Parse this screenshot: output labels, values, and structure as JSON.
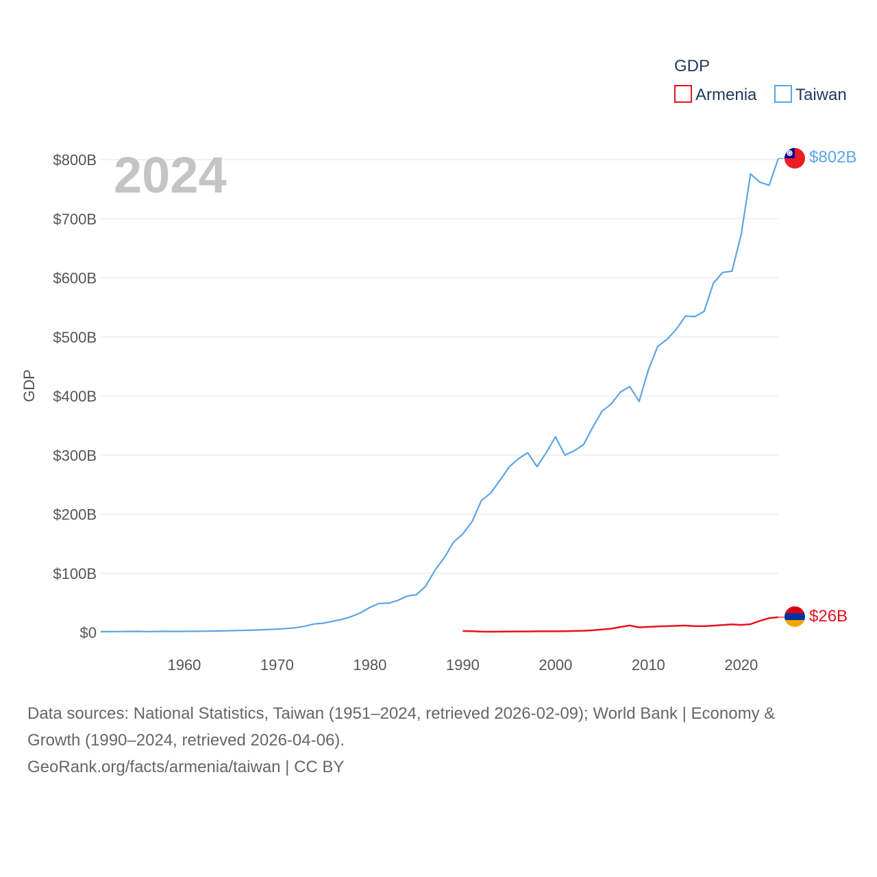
{
  "chart_data": {
    "type": "line",
    "title": "",
    "legend_title": "GDP",
    "legend_position": "top-right",
    "ylabel": "GDP",
    "xlabel": "",
    "year_label": "2024",
    "xlim": [
      1951,
      2024
    ],
    "ylim": [
      0,
      800
    ],
    "y_unit": "billions USD",
    "x_ticks": [
      1960,
      1970,
      1980,
      1990,
      2000,
      2010,
      2020
    ],
    "x_tick_labels": [
      "1960",
      "1970",
      "1980",
      "1990",
      "2000",
      "2010",
      "2020"
    ],
    "y_ticks": [
      0,
      100,
      200,
      300,
      400,
      500,
      600,
      700,
      800
    ],
    "y_tick_labels": [
      "$0",
      "$100B",
      "$200B",
      "$300B",
      "$400B",
      "$500B",
      "$600B",
      "$700B",
      "$800B"
    ],
    "grid": true,
    "series": [
      {
        "name": "Armenia",
        "color": "#e8101e",
        "end_label": "$26B",
        "flag": "armenia",
        "x": [
          1990,
          1991,
          1992,
          1993,
          1994,
          1995,
          1996,
          1997,
          1998,
          1999,
          2000,
          2001,
          2002,
          2003,
          2004,
          2005,
          2006,
          2007,
          2008,
          2009,
          2010,
          2011,
          2012,
          2013,
          2014,
          2015,
          2016,
          2017,
          2018,
          2019,
          2020,
          2021,
          2022,
          2023,
          2024
        ],
        "values": [
          2.3,
          2.1,
          1.3,
          1.2,
          1.3,
          1.5,
          1.6,
          1.6,
          1.9,
          1.8,
          1.9,
          2.1,
          2.4,
          2.8,
          3.6,
          4.9,
          6.4,
          9.2,
          11.7,
          8.6,
          9.3,
          10.1,
          10.6,
          11.1,
          11.6,
          10.6,
          10.5,
          11.5,
          12.5,
          13.6,
          12.6,
          13.9,
          19.5,
          24.1,
          25.8
        ]
      },
      {
        "name": "Taiwan",
        "color": "#5aa4e6",
        "end_label": "$802B",
        "flag": "taiwan",
        "x": [
          1951,
          1952,
          1953,
          1954,
          1955,
          1956,
          1957,
          1958,
          1959,
          1960,
          1961,
          1962,
          1963,
          1964,
          1965,
          1966,
          1967,
          1968,
          1969,
          1970,
          1971,
          1972,
          1973,
          1974,
          1975,
          1976,
          1977,
          1978,
          1979,
          1980,
          1981,
          1982,
          1983,
          1984,
          1985,
          1986,
          1987,
          1988,
          1989,
          1990,
          1991,
          1992,
          1993,
          1994,
          1995,
          1996,
          1997,
          1998,
          1999,
          2000,
          2001,
          2002,
          2003,
          2004,
          2005,
          2006,
          2007,
          2008,
          2009,
          2010,
          2011,
          2012,
          2013,
          2014,
          2015,
          2016,
          2017,
          2018,
          2019,
          2020,
          2021,
          2022,
          2023,
          2024
        ],
        "values": [
          1.2,
          1.5,
          1.4,
          1.6,
          1.7,
          1.4,
          1.6,
          1.8,
          1.6,
          1.7,
          1.8,
          2.0,
          2.3,
          2.6,
          2.9,
          3.2,
          3.6,
          4.2,
          4.9,
          5.7,
          6.6,
          7.9,
          10.5,
          14.3,
          15.6,
          18.9,
          22.0,
          26.8,
          33.2,
          42.3,
          49.0,
          49.4,
          54.0,
          61.3,
          63.8,
          78.0,
          105.0,
          126.0,
          152.6,
          166.6,
          187.1,
          222.9,
          235.6,
          257.2,
          280.0,
          294.0,
          304.0,
          280.5,
          304.3,
          331.0,
          299.8,
          307.4,
          317.4,
          346.9,
          374.1,
          386.5,
          406.9,
          415.9,
          390.8,
          444.2,
          483.9,
          495.8,
          512.9,
          535.3,
          534.5,
          543.1,
          590.8,
          609.2,
          611.3,
          673.2,
          775.9,
          762.0,
          756.6,
          802.0
        ]
      }
    ]
  },
  "footer": {
    "line1": "Data sources: National Statistics, Taiwan (1951–2024, retrieved 2026-02-09); World Bank | Economy &",
    "line2": "Growth (1990–2024, retrieved 2026-04-06).",
    "line3": "GeoRank.org/facts/armenia/taiwan | CC BY"
  }
}
